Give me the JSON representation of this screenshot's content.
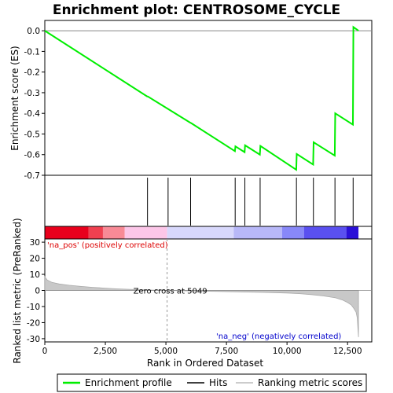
{
  "chart_data": {
    "type": "line",
    "title": "Enrichment plot: CENTROSOME_CYCLE",
    "xlabel": "Rank in Ordered Dataset",
    "ylabel_top": "Enrichment score (ES)",
    "ylabel_bottom": "Ranked list metric (PreRanked)",
    "xlim": [
      0,
      13500
    ],
    "x_ticks": [
      0,
      2500,
      5000,
      7500,
      10000,
      12500
    ],
    "x_tick_labels": [
      "0",
      "2,500",
      "5,000",
      "7,500",
      "10,000",
      "12,500"
    ],
    "es_ylim": [
      -0.7,
      0.05
    ],
    "es_ticks": [
      0.0,
      -0.1,
      -0.2,
      -0.3,
      -0.4,
      -0.5,
      -0.6,
      -0.7
    ],
    "es_tick_labels": [
      "0.0",
      "-0.1",
      "-0.2",
      "-0.3",
      "-0.4",
      "-0.5",
      "-0.6",
      "-0.7"
    ],
    "metric_ylim": [
      -32,
      32
    ],
    "metric_ticks": [
      30,
      20,
      10,
      0,
      -10,
      -20,
      -30
    ],
    "metric_tick_labels": [
      "30",
      "20",
      "10",
      "0",
      "-10",
      "-20",
      "-30"
    ],
    "series": [
      {
        "name": "Enrichment profile",
        "color": "#00ee00",
        "x": [
          0,
          4230,
          4250,
          5100,
          6000,
          6050,
          7850,
          7870,
          8250,
          8270,
          8880,
          8900,
          10380,
          10400,
          11080,
          11100,
          11970,
          11990,
          12720,
          12740,
          12950
        ],
        "y": [
          0.0,
          -0.318,
          -0.318,
          -0.38,
          -0.445,
          -0.448,
          -0.583,
          -0.56,
          -0.588,
          -0.555,
          -0.6,
          -0.558,
          -0.673,
          -0.597,
          -0.648,
          -0.54,
          -0.605,
          -0.4,
          -0.455,
          0.018,
          0.0
        ]
      }
    ],
    "hits": [
      4240,
      5090,
      6020,
      7860,
      8260,
      8890,
      10390,
      11090,
      11980,
      12730
    ],
    "metric_profile": {
      "x": [
        0,
        100,
        300,
        600,
        1000,
        1500,
        2000,
        2500,
        3000,
        3500,
        4000,
        4500,
        5049,
        6000,
        7000,
        8000,
        9000,
        10000,
        10500,
        11000,
        11500,
        12000,
        12300,
        12500,
        12650,
        12750,
        12850,
        12900,
        12950
      ],
      "y": [
        8.5,
        6.5,
        5.0,
        4.0,
        3.2,
        2.5,
        1.9,
        1.4,
        1.0,
        0.7,
        0.45,
        0.2,
        0.0,
        -0.3,
        -0.6,
        -0.9,
        -1.2,
        -1.6,
        -2.0,
        -2.6,
        -3.4,
        -4.6,
        -6.0,
        -7.5,
        -9.0,
        -11.0,
        -13.5,
        -17.0,
        -29.0
      ]
    },
    "heat_colors": [
      "#e8001c",
      "#f04050",
      "#f88a96",
      "#fcc6e8",
      "#d8d8fc",
      "#b8b8f8",
      "#8888f8",
      "#5a50f0",
      "#2a10d8"
    ],
    "heat_breaks": [
      0,
      1800,
      2400,
      3300,
      5049,
      7800,
      9800,
      10700,
      12450,
      12950
    ],
    "zero_cross_label": "Zero cross at 5049",
    "zero_cross_x": 5049,
    "pos_label": "'na_pos' (positively correlated)",
    "pos_color": "#dd0000",
    "neg_label": "'na_neg' (negatively correlated)",
    "neg_color": "#0000cc",
    "legend": [
      {
        "label": "Enrichment profile",
        "color": "#00ee00"
      },
      {
        "label": "Hits",
        "color": "#000000"
      },
      {
        "label": "Ranking metric scores",
        "color": "#bbbbbb"
      }
    ]
  }
}
